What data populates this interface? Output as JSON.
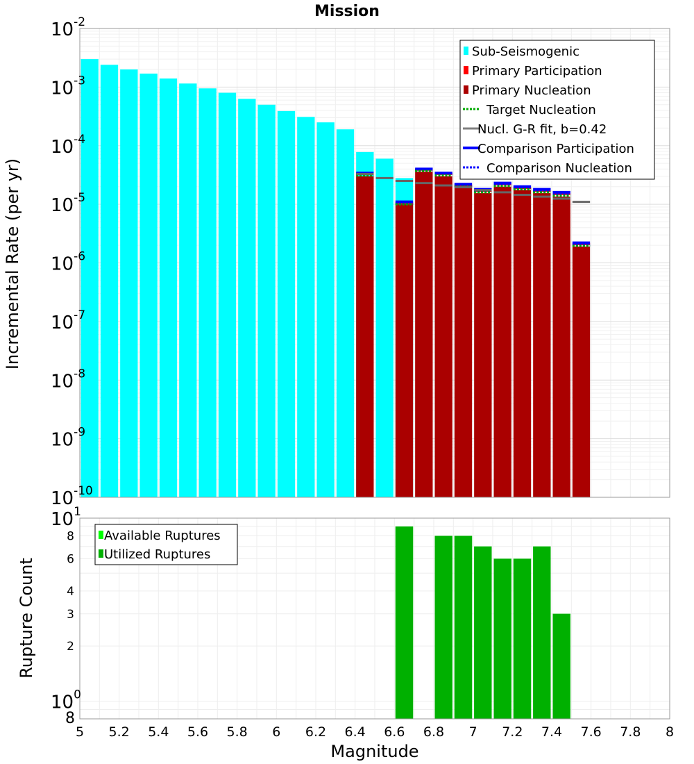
{
  "chart_data": [
    {
      "type": "bar",
      "title": "Mission",
      "xlabel": "",
      "ylabel": "Incremental Rate (per yr)",
      "yscale": "log",
      "xlim": [
        5,
        8
      ],
      "ylim": [
        1e-10,
        0.01
      ],
      "bin_width": 0.1,
      "y_tick_bases": [
        "10",
        "10",
        "10",
        "10",
        "10",
        "10",
        "10",
        "10",
        "10"
      ],
      "y_tick_exps": [
        "-2",
        "-3",
        "-4",
        "-5",
        "-6",
        "-7",
        "-8",
        "-9",
        "-10"
      ],
      "y_tick_values": [
        0.01,
        0.001,
        0.0001,
        1e-05,
        1e-06,
        1e-07,
        1e-08,
        1e-09,
        1e-10
      ],
      "legend": [
        "Sub-Seismogenic",
        "Primary Participation",
        "Primary Nucleation",
        "Target Nucleation",
        "Nucl. G-R fit, b=0.42",
        "Comparison Participation",
        "Comparison Nucleation"
      ],
      "series": [
        {
          "name": "Sub-Seismogenic",
          "color": "#00ffff",
          "x": [
            5.05,
            5.15,
            5.25,
            5.35,
            5.45,
            5.55,
            5.65,
            5.75,
            5.85,
            5.95,
            6.05,
            6.15,
            6.25,
            6.35,
            6.45,
            6.55,
            6.65
          ],
          "values": [
            0.003,
            0.0024,
            0.002,
            0.0017,
            0.0014,
            0.00115,
            0.00095,
            0.0008,
            0.00063,
            0.0005,
            0.00039,
            0.00031,
            0.00025,
            0.00019,
            7.8e-05,
            6e-05,
            2.8e-05
          ]
        },
        {
          "name": "Primary Participation",
          "color": "#ff0000",
          "x": [
            6.45,
            6.65,
            6.75,
            6.85,
            6.95,
            7.05,
            7.15,
            7.25,
            7.35,
            7.45,
            7.55
          ],
          "values": [
            3.3e-05,
            1.05e-05,
            3.9e-05,
            3.3e-05,
            2.1e-05,
            1.7e-05,
            2.2e-05,
            1.9e-05,
            1.7e-05,
            1.5e-05,
            2.1e-06
          ]
        },
        {
          "name": "Primary Nucleation",
          "color": "#aa0000",
          "x": [
            6.45,
            6.65,
            6.75,
            6.85,
            6.95,
            7.05,
            7.15,
            7.25,
            7.35,
            7.45,
            7.55
          ],
          "values": [
            3e-05,
            1e-05,
            3.6e-05,
            3e-05,
            1.9e-05,
            1.55e-05,
            2e-05,
            1.75e-05,
            1.55e-05,
            1.35e-05,
            1.9e-06
          ]
        },
        {
          "name": "Target Nucleation",
          "color": "#00aa00",
          "x": [
            6.45,
            6.65,
            6.75,
            6.85,
            6.95,
            7.05,
            7.15,
            7.25,
            7.35,
            7.45,
            7.55
          ],
          "values": [
            3.1e-05,
            1e-05,
            3.7e-05,
            3.1e-05,
            2e-05,
            1.6e-05,
            2.05e-05,
            1.8e-05,
            1.6e-05,
            1.4e-05,
            1.95e-06
          ]
        },
        {
          "name": "Nucl. G-R fit, b=0.42",
          "color": "#808080",
          "x": [
            6.45,
            6.55,
            6.65,
            6.75,
            6.85,
            6.95,
            7.05,
            7.15,
            7.25,
            7.35,
            7.45,
            7.55
          ],
          "values": [
            3.3e-05,
            2.8e-05,
            2.5e-05,
            2.3e-05,
            2.1e-05,
            1.95e-05,
            1.75e-05,
            1.6e-05,
            1.45e-05,
            1.35e-05,
            1.25e-05,
            1.1e-05
          ]
        },
        {
          "name": "Comparison Participation",
          "color": "#0000ff",
          "x": [
            6.45,
            6.65,
            6.75,
            6.85,
            6.95,
            7.05,
            7.15,
            7.25,
            7.35,
            7.45,
            7.55
          ],
          "values": [
            3.4e-05,
            1.1e-05,
            4e-05,
            3.4e-05,
            2.2e-05,
            1.8e-05,
            2.3e-05,
            2e-05,
            1.8e-05,
            1.6e-05,
            2.2e-06
          ]
        },
        {
          "name": "Comparison Nucleation",
          "color": "#0000ff",
          "x": [
            6.45,
            6.65,
            6.75,
            6.85,
            6.95,
            7.05,
            7.15,
            7.25,
            7.35,
            7.45,
            7.55
          ],
          "values": [
            3.2e-05,
            1.02e-05,
            3.8e-05,
            3.2e-05,
            2.05e-05,
            1.65e-05,
            2.1e-05,
            1.85e-05,
            1.65e-05,
            1.45e-05,
            2e-06
          ]
        }
      ]
    },
    {
      "type": "bar",
      "title": "",
      "xlabel": "Magnitude",
      "ylabel": "Rupture Count",
      "yscale": "log",
      "xlim": [
        5,
        8
      ],
      "ylim": [
        0.8,
        10
      ],
      "bin_width": 0.1,
      "x_ticks": [
        "5",
        "5.2",
        "5.4",
        "5.6",
        "5.8",
        "6",
        "6.2",
        "6.4",
        "6.6",
        "6.8",
        "7",
        "7.2",
        "7.4",
        "7.6",
        "7.8",
        "8"
      ],
      "y_tick_labels": [
        "2",
        "3",
        "4",
        "6",
        "8",
        "8"
      ],
      "y_tick_values": [
        2,
        3,
        4,
        6,
        8,
        0.8
      ],
      "y_decade_bases": [
        "10",
        "10"
      ],
      "y_decade_exps": [
        "1",
        "0"
      ],
      "y_decade_values": [
        10,
        1
      ],
      "legend": [
        "Available Ruptures",
        "Utilized Ruptures"
      ],
      "series": [
        {
          "name": "Available Ruptures",
          "color": "#00ff00",
          "x": [
            6.65,
            6.85,
            6.95,
            7.05,
            7.15,
            7.25,
            7.35,
            7.45
          ],
          "values": [
            9,
            8,
            8,
            7,
            6,
            6,
            7,
            3
          ]
        },
        {
          "name": "Utilized Ruptures",
          "color": "#00b000",
          "x": [
            6.65,
            6.85,
            6.95,
            7.05,
            7.15,
            7.25,
            7.35,
            7.45
          ],
          "values": [
            9,
            8,
            8,
            7,
            6,
            6,
            7,
            3
          ]
        }
      ]
    }
  ]
}
